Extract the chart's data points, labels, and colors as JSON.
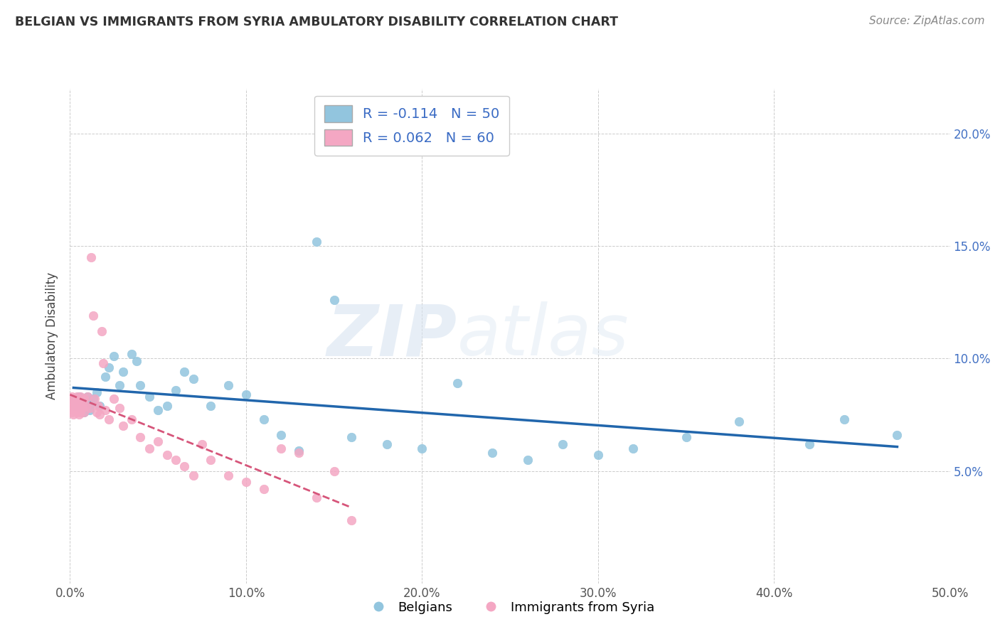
{
  "title": "BELGIAN VS IMMIGRANTS FROM SYRIA AMBULATORY DISABILITY CORRELATION CHART",
  "source": "Source: ZipAtlas.com",
  "ylabel": "Ambulatory Disability",
  "xlim": [
    0.0,
    0.5
  ],
  "ylim": [
    0.0,
    0.22
  ],
  "x_ticks": [
    0.0,
    0.1,
    0.2,
    0.3,
    0.4,
    0.5
  ],
  "x_tick_labels": [
    "0.0%",
    "10.0%",
    "20.0%",
    "30.0%",
    "40.0%",
    "50.0%"
  ],
  "y_ticks": [
    0.05,
    0.1,
    0.15,
    0.2
  ],
  "y_tick_labels_right": [
    "5.0%",
    "10.0%",
    "15.0%",
    "20.0%"
  ],
  "belgians_R": -0.114,
  "belgians_N": 50,
  "syria_R": 0.062,
  "syria_N": 60,
  "legend_label_belgians": "Belgians",
  "legend_label_syria": "Immigrants from Syria",
  "color_belgians": "#92c5de",
  "color_syria": "#f4a7c3",
  "trendline_belgians_color": "#2166ac",
  "trendline_syria_color": "#d6557a",
  "watermark_zip": "ZIP",
  "watermark_atlas": "atlas",
  "background_color": "#ffffff",
  "belgians_x": [
    0.002,
    0.003,
    0.004,
    0.005,
    0.006,
    0.007,
    0.008,
    0.009,
    0.01,
    0.011,
    0.012,
    0.013,
    0.015,
    0.017,
    0.02,
    0.022,
    0.025,
    0.028,
    0.03,
    0.035,
    0.038,
    0.04,
    0.045,
    0.05,
    0.055,
    0.06,
    0.065,
    0.07,
    0.08,
    0.09,
    0.1,
    0.11,
    0.12,
    0.13,
    0.14,
    0.15,
    0.16,
    0.18,
    0.2,
    0.22,
    0.24,
    0.26,
    0.28,
    0.3,
    0.32,
    0.35,
    0.38,
    0.42,
    0.44,
    0.47
  ],
  "belgians_y": [
    0.082,
    0.079,
    0.081,
    0.083,
    0.078,
    0.08,
    0.076,
    0.079,
    0.083,
    0.077,
    0.08,
    0.082,
    0.085,
    0.079,
    0.092,
    0.096,
    0.101,
    0.088,
    0.094,
    0.102,
    0.099,
    0.088,
    0.083,
    0.077,
    0.079,
    0.086,
    0.094,
    0.091,
    0.079,
    0.088,
    0.084,
    0.073,
    0.066,
    0.059,
    0.152,
    0.126,
    0.065,
    0.062,
    0.06,
    0.089,
    0.058,
    0.055,
    0.062,
    0.057,
    0.06,
    0.065,
    0.072,
    0.062,
    0.073,
    0.066
  ],
  "syria_x": [
    0.0,
    0.0,
    0.001,
    0.001,
    0.001,
    0.001,
    0.002,
    0.002,
    0.002,
    0.002,
    0.003,
    0.003,
    0.003,
    0.004,
    0.004,
    0.004,
    0.005,
    0.005,
    0.005,
    0.006,
    0.006,
    0.006,
    0.007,
    0.007,
    0.008,
    0.008,
    0.009,
    0.01,
    0.011,
    0.012,
    0.013,
    0.014,
    0.015,
    0.016,
    0.017,
    0.018,
    0.019,
    0.02,
    0.022,
    0.025,
    0.028,
    0.03,
    0.035,
    0.04,
    0.045,
    0.05,
    0.055,
    0.06,
    0.065,
    0.07,
    0.075,
    0.08,
    0.09,
    0.1,
    0.11,
    0.12,
    0.13,
    0.14,
    0.15,
    0.16
  ],
  "syria_y": [
    0.082,
    0.078,
    0.08,
    0.079,
    0.083,
    0.076,
    0.077,
    0.081,
    0.075,
    0.08,
    0.078,
    0.082,
    0.079,
    0.08,
    0.083,
    0.076,
    0.078,
    0.082,
    0.075,
    0.079,
    0.083,
    0.076,
    0.08,
    0.078,
    0.082,
    0.076,
    0.079,
    0.083,
    0.078,
    0.145,
    0.119,
    0.082,
    0.076,
    0.079,
    0.075,
    0.112,
    0.098,
    0.077,
    0.073,
    0.082,
    0.078,
    0.07,
    0.073,
    0.065,
    0.06,
    0.063,
    0.057,
    0.055,
    0.052,
    0.048,
    0.062,
    0.055,
    0.048,
    0.045,
    0.042,
    0.06,
    0.058,
    0.038,
    0.05,
    0.028
  ]
}
